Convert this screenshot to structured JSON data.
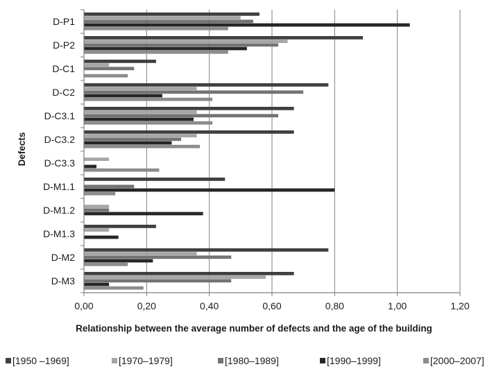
{
  "chart_data": {
    "type": "bar",
    "orientation": "horizontal",
    "categories": [
      "D-P1",
      "D-P2",
      "D-C1",
      "D-C2",
      "D-C3.1",
      "D-C3.2",
      "D-C3.3",
      "D-M1.1",
      "D-M1.2",
      "D-M1.3",
      "D-M2",
      "D-M3"
    ],
    "series": [
      {
        "name": "[1950 –1969]",
        "color": "#404040",
        "values": [
          0.56,
          0.89,
          0.23,
          0.78,
          0.67,
          0.67,
          0.0,
          0.45,
          0.0,
          0.23,
          0.78,
          0.67
        ]
      },
      {
        "name": "[1970–1979]",
        "color": "#a6a6a6",
        "values": [
          0.5,
          0.65,
          0.08,
          0.36,
          0.36,
          0.36,
          0.08,
          0.0,
          0.08,
          0.08,
          0.36,
          0.58
        ]
      },
      {
        "name": "[1980–1989]",
        "color": "#737373",
        "values": [
          0.54,
          0.62,
          0.16,
          0.7,
          0.62,
          0.31,
          0.0,
          0.16,
          0.08,
          0.0,
          0.47,
          0.47
        ]
      },
      {
        "name": "[1990–1999]",
        "color": "#262626",
        "values": [
          1.04,
          0.52,
          0.0,
          0.25,
          0.35,
          0.28,
          0.04,
          0.8,
          0.38,
          0.11,
          0.22,
          0.08
        ]
      },
      {
        "name": "[2000–2007]",
        "color": "#8c8c8c",
        "values": [
          0.46,
          0.46,
          0.14,
          0.41,
          0.41,
          0.37,
          0.24,
          0.1,
          0.0,
          0.0,
          0.14,
          0.19
        ]
      }
    ],
    "xlabel": "Relationship between the average number of defects and the age of the building",
    "ylabel": "Defects",
    "xlim": [
      0,
      1.2
    ],
    "xticks": [
      "0,00",
      "0,20",
      "0,40",
      "0,60",
      "0,80",
      "1,00",
      "1,20"
    ],
    "grid": "vertical",
    "legend_position": "bottom"
  }
}
